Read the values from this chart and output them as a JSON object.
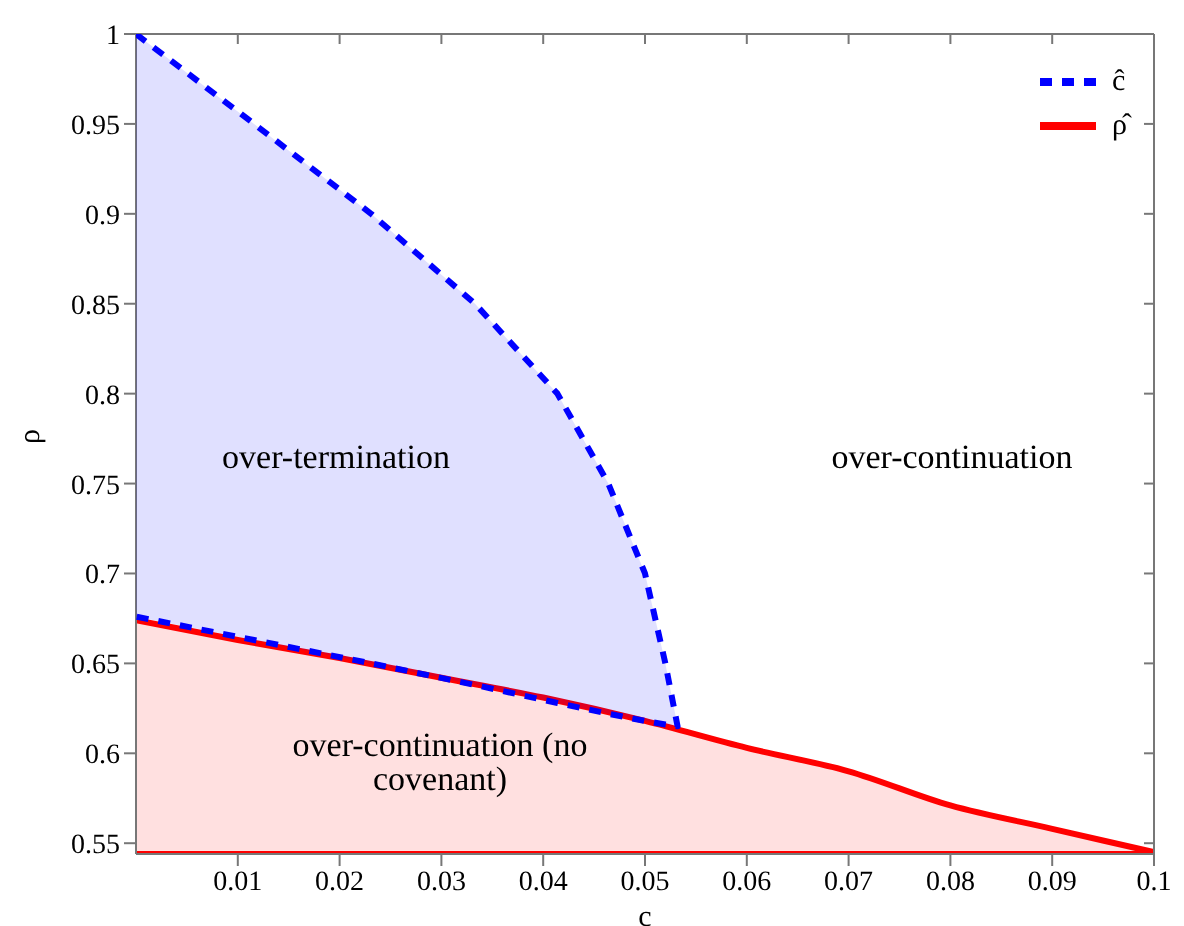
{
  "chart_data": {
    "type": "area",
    "xlabel": "c",
    "ylabel": "ρ",
    "xlim": [
      0,
      0.1
    ],
    "ylim": [
      0.544,
      1
    ],
    "xticks": [
      0.01,
      0.02,
      0.03,
      0.04,
      0.05,
      0.06,
      0.07,
      0.08,
      0.09,
      0.1
    ],
    "yticks": [
      0.55,
      0.6,
      0.65,
      0.7,
      0.75,
      0.8,
      0.85,
      0.9,
      0.95,
      1
    ],
    "legend": "top right",
    "series": [
      {
        "name": "ĉ",
        "color": "#0000ff",
        "line_style": "dashed",
        "x": [
          0,
          0.0116,
          0.0231,
          0.0333,
          0.0414,
          0.0464,
          0.05,
          0.052,
          0.0532,
          0.052,
          0.05,
          0.0464,
          0.0414,
          0.0333,
          0.0231,
          0.0116,
          0
        ],
        "values": [
          1,
          0.95,
          0.9,
          0.85,
          0.8,
          0.75,
          0.7,
          0.65,
          0.615,
          0.616,
          0.618,
          0.622,
          0.628,
          0.638,
          0.65,
          0.663,
          0.676
        ]
      },
      {
        "name": "ρ̂",
        "color": "#ff0000",
        "line_style": "solid",
        "x": [
          0,
          0.01,
          0.02,
          0.03,
          0.04,
          0.05,
          0.06,
          0.07,
          0.08,
          0.09,
          0.1
        ],
        "values": [
          0.674,
          0.663,
          0.653,
          0.642,
          0.631,
          0.618,
          0.603,
          0.59,
          0.571,
          0.558,
          0.545
        ]
      }
    ],
    "annotations": [
      "over-termination",
      "over-continuation",
      "over-continuation (no covenant)"
    ]
  }
}
